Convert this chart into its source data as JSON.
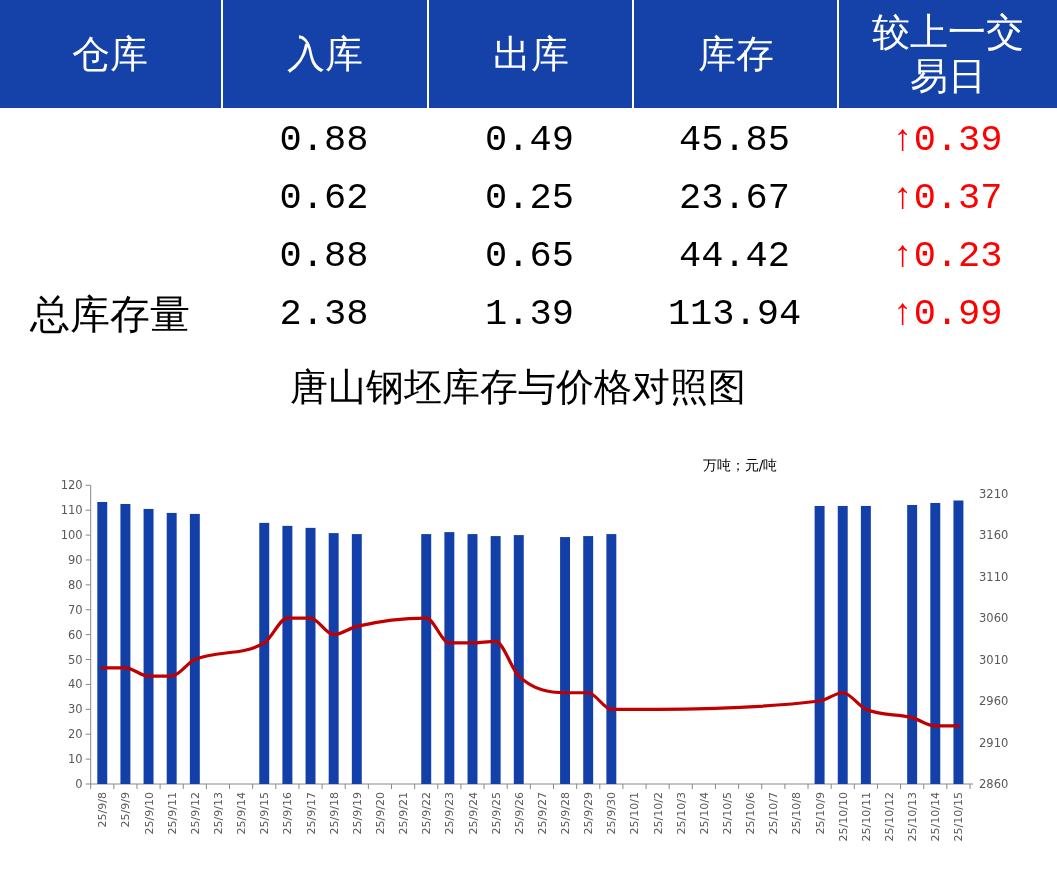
{
  "chart_data": [
    {
      "type": "other",
      "ylabel": "仓库",
      "categories": [
        "入库",
        "出库",
        "库存",
        "较上一交易日"
      ],
      "y_categories": [
        null,
        null,
        null,
        "总库存量"
      ],
      "cell_labels": [
        [
          "0.88",
          "0.49",
          "45.85",
          "↑0.39"
        ],
        [
          "0.62",
          "0.25",
          "23.67",
          "↑0.37"
        ],
        [
          "0.88",
          "0.65",
          "44.42",
          "↑0.23"
        ],
        [
          "2.38",
          "1.39",
          "113.94",
          "↑0.99"
        ]
      ]
    },
    {
      "type": "bar",
      "title": "唐山钢坯库存与价格对照图",
      "annotations": [
        "万吨；元/吨"
      ],
      "categories": [
        "25/9/8",
        "25/9/9",
        "25/9/10",
        "25/9/11",
        "25/9/12",
        "25/9/13",
        "25/9/14",
        "25/9/15",
        "25/9/16",
        "25/9/17",
        "25/9/18",
        "25/9/19",
        "25/9/20",
        "25/9/21",
        "25/9/22",
        "25/9/23",
        "25/9/24",
        "25/9/25",
        "25/9/26",
        "25/9/27",
        "25/9/28",
        "25/9/29",
        "25/9/30",
        "25/10/1",
        "25/10/2",
        "25/10/3",
        "25/10/4",
        "25/10/5",
        "25/10/6",
        "25/10/7",
        "25/10/8",
        "25/10/9",
        "25/10/10",
        "25/10/11",
        "25/10/12",
        "25/10/13",
        "25/10/14",
        "25/10/15"
      ],
      "series": [
        {
          "type": "bar",
          "color": "#1240a8",
          "values": [
            113.3,
            112.5,
            110.5,
            108.9,
            108.5,
            null,
            null,
            104.9,
            103.7,
            102.9,
            100.8,
            100.4,
            null,
            null,
            100.4,
            101.2,
            100.4,
            99.6,
            100.0,
            null,
            99.2,
            99.6,
            100.4,
            null,
            null,
            null,
            null,
            null,
            null,
            null,
            null,
            111.7,
            111.7,
            111.7,
            null,
            112.1,
            112.9,
            113.9
          ]
        },
        {
          "type": "line",
          "axis": "y2",
          "color": "#c00000",
          "x": [
            "25/9/8",
            "25/9/9",
            "25/9/10",
            "25/9/11",
            "25/9/12",
            "25/9/15",
            "25/9/16",
            "25/9/17",
            "25/9/18",
            "25/9/19",
            "25/9/22",
            "25/9/23",
            "25/9/24",
            "25/9/25",
            "25/9/26",
            "25/9/28",
            "25/9/29",
            "25/9/30",
            "25/10/9",
            "25/10/10",
            "25/10/11",
            "25/10/13",
            "25/10/14",
            "25/10/15"
          ],
          "values": [
            3000,
            3000,
            2990,
            2990,
            3010,
            3030,
            3060,
            3060,
            3040,
            3050,
            3060,
            3030,
            3030,
            3032,
            2990,
            2970,
            2970,
            2950,
            2960,
            2970,
            2950,
            2940,
            2930,
            2930
          ]
        }
      ],
      "ylim": [
        0,
        120
      ],
      "yticks": [
        0,
        10,
        20,
        30,
        40,
        50,
        60,
        70,
        80,
        90,
        100,
        110,
        120
      ],
      "y2lim": [
        2860,
        3220
      ],
      "y2ticks": [
        2860,
        2910,
        2960,
        3010,
        3060,
        3110,
        3160,
        3210
      ]
    }
  ]
}
